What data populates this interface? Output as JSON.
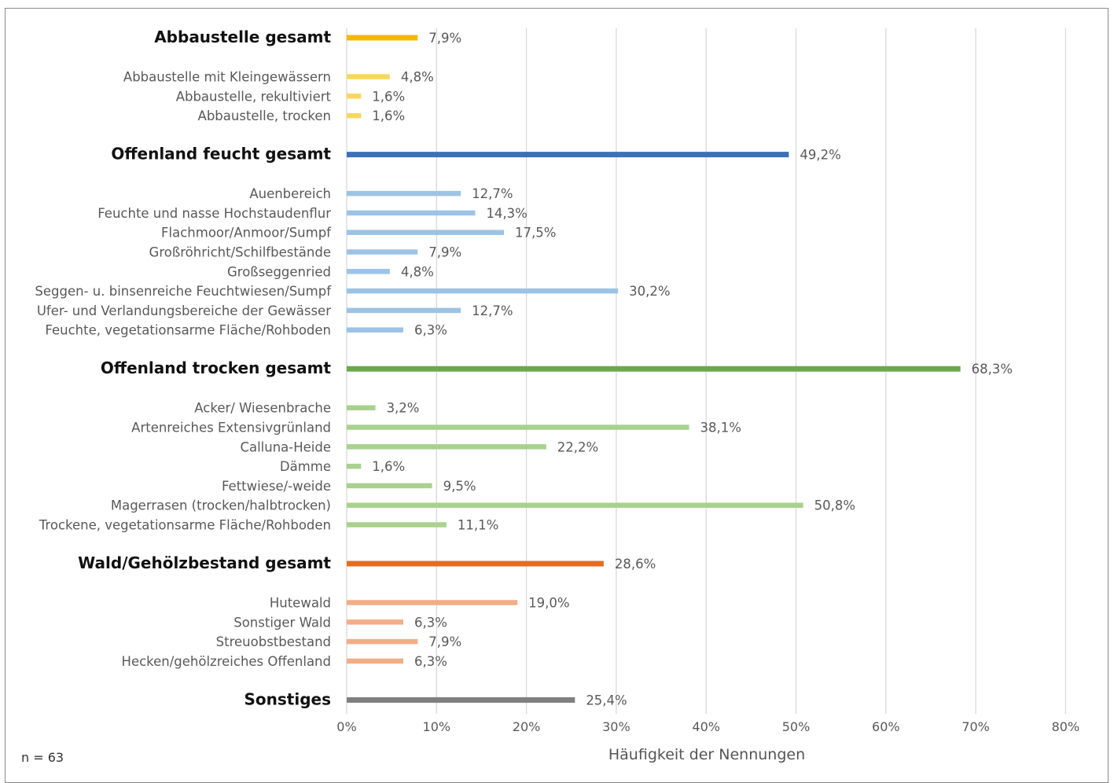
{
  "chart_data": {
    "type": "bar",
    "orientation": "horizontal",
    "xlabel": "Häufigkeit der Nennungen",
    "xlim": [
      0,
      80
    ],
    "xticks": [
      "0%",
      "10%",
      "20%",
      "30%",
      "40%",
      "50%",
      "60%",
      "70%",
      "80%"
    ],
    "grid": true,
    "colors": {
      "abbau_total": "#f5b800",
      "abbau": "#f9d75e",
      "feucht_total": "#3f6fb6",
      "feucht": "#9cc3e6",
      "trocken_total": "#6aa84f",
      "trocken": "#a9d18e",
      "wald_total": "#e46c22",
      "wald": "#f2ad86",
      "sonst": "#7f7f7f"
    },
    "categories": [
      {
        "label": "Abbaustelle gesamt",
        "value": 7.9,
        "value_label": "7,9%",
        "total": true,
        "group": "abbau_total"
      },
      {
        "label": "Abbaustelle mit Kleingewässern",
        "value": 4.8,
        "value_label": "4,8%",
        "total": false,
        "group": "abbau"
      },
      {
        "label": "Abbaustelle, rekultiviert",
        "value": 1.6,
        "value_label": "1,6%",
        "total": false,
        "group": "abbau"
      },
      {
        "label": "Abbaustelle, trocken",
        "value": 1.6,
        "value_label": "1,6%",
        "total": false,
        "group": "abbau"
      },
      {
        "label": "Offenland feucht gesamt",
        "value": 49.2,
        "value_label": "49,2%",
        "total": true,
        "group": "feucht_total"
      },
      {
        "label": "Auenbereich",
        "value": 12.7,
        "value_label": "12,7%",
        "total": false,
        "group": "feucht"
      },
      {
        "label": "Feuchte und nasse Hochstaudenflur",
        "value": 14.3,
        "value_label": "14,3%",
        "total": false,
        "group": "feucht"
      },
      {
        "label": "Flachmoor/Anmoor/Sumpf",
        "value": 17.5,
        "value_label": "17,5%",
        "total": false,
        "group": "feucht"
      },
      {
        "label": "Großröhricht/Schilfbestände",
        "value": 7.9,
        "value_label": "7,9%",
        "total": false,
        "group": "feucht"
      },
      {
        "label": "Großseggenried",
        "value": 4.8,
        "value_label": "4,8%",
        "total": false,
        "group": "feucht"
      },
      {
        "label": "Seggen- u. binsenreiche Feuchtwiesen/Sumpf",
        "value": 30.2,
        "value_label": "30,2%",
        "total": false,
        "group": "feucht"
      },
      {
        "label": "Ufer- und Verlandungsbereiche der Gewässer",
        "value": 12.7,
        "value_label": "12,7%",
        "total": false,
        "group": "feucht"
      },
      {
        "label": "Feuchte, vegetationsarme Fläche/Rohboden",
        "value": 6.3,
        "value_label": "6,3%",
        "total": false,
        "group": "feucht"
      },
      {
        "label": "Offenland trocken gesamt",
        "value": 68.3,
        "value_label": "68,3%",
        "total": true,
        "group": "trocken_total"
      },
      {
        "label": "Acker/ Wiesenbrache",
        "value": 3.2,
        "value_label": "3,2%",
        "total": false,
        "group": "trocken"
      },
      {
        "label": "Artenreiches Extensivgrünland",
        "value": 38.1,
        "value_label": "38,1%",
        "total": false,
        "group": "trocken"
      },
      {
        "label": "Calluna-Heide",
        "value": 22.2,
        "value_label": "22,2%",
        "total": false,
        "group": "trocken"
      },
      {
        "label": "Dämme",
        "value": 1.6,
        "value_label": "1,6%",
        "total": false,
        "group": "trocken"
      },
      {
        "label": "Fettwiese/-weide",
        "value": 9.5,
        "value_label": "9,5%",
        "total": false,
        "group": "trocken"
      },
      {
        "label": "Magerrasen (trocken/halbtrocken)",
        "value": 50.8,
        "value_label": "50,8%",
        "total": false,
        "group": "trocken"
      },
      {
        "label": "Trockene, vegetationsarme Fläche/Rohboden",
        "value": 11.1,
        "value_label": "11,1%",
        "total": false,
        "group": "trocken"
      },
      {
        "label": "Wald/Gehölzbestand gesamt",
        "value": 28.6,
        "value_label": "28,6%",
        "total": true,
        "group": "wald_total"
      },
      {
        "label": "Hutewald",
        "value": 19.0,
        "value_label": "19,0%",
        "total": false,
        "group": "wald"
      },
      {
        "label": "Sonstiger Wald",
        "value": 6.3,
        "value_label": "6,3%",
        "total": false,
        "group": "wald"
      },
      {
        "label": "Streuobstbestand",
        "value": 7.9,
        "value_label": "7,9%",
        "total": false,
        "group": "wald"
      },
      {
        "label": "Hecken/gehölzreiches Offenland",
        "value": 6.3,
        "value_label": "6,3%",
        "total": false,
        "group": "wald"
      },
      {
        "label": "Sonstiges",
        "value": 25.4,
        "value_label": "25,4%",
        "total": true,
        "group": "sonst"
      }
    ]
  },
  "note": "n = 63"
}
